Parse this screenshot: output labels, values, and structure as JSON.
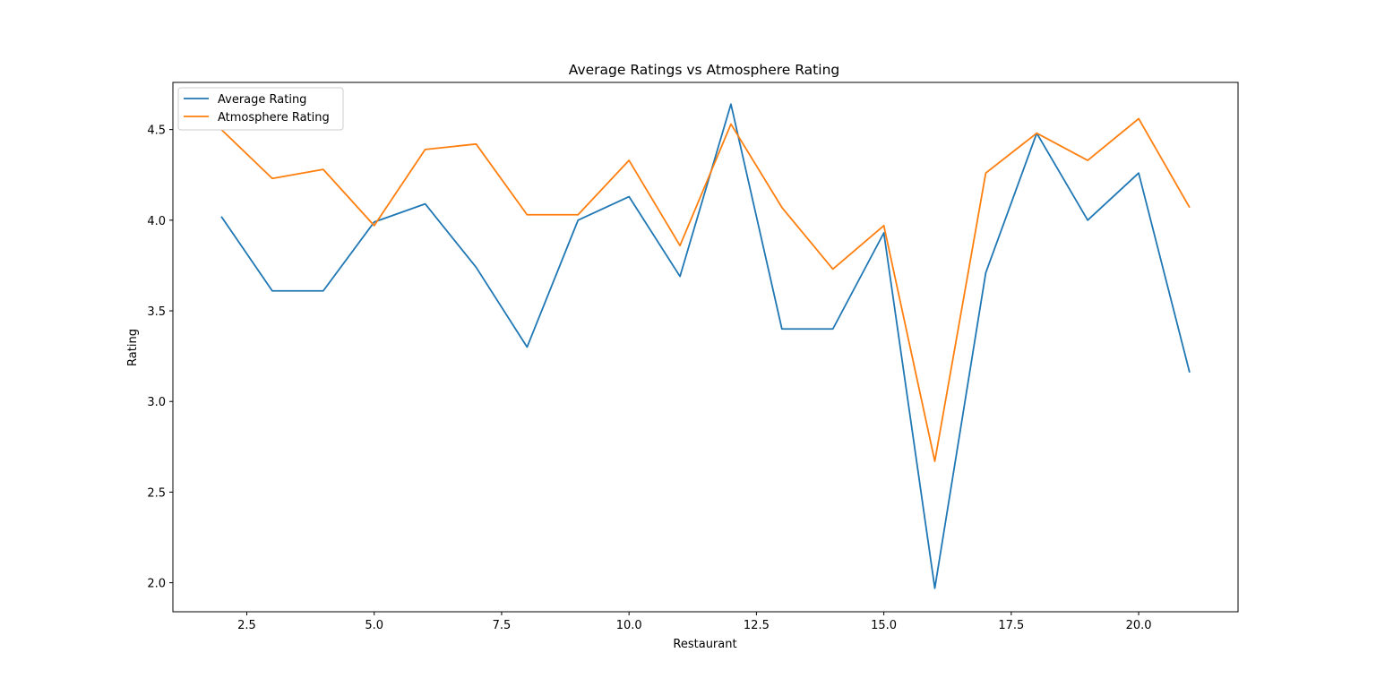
{
  "chart_data": {
    "type": "line",
    "title": "Average Ratings vs Atmosphere Rating",
    "xlabel": "Restaurant",
    "ylabel": "Rating",
    "xlim": [
      1.05,
      21.95
    ],
    "ylim": [
      1.84,
      4.76
    ],
    "x_ticks": [
      2.5,
      5.0,
      7.5,
      10.0,
      12.5,
      15.0,
      17.5,
      20.0
    ],
    "x_tick_labels": [
      "2.5",
      "5.0",
      "7.5",
      "10.0",
      "12.5",
      "15.0",
      "17.5",
      "20.0"
    ],
    "y_ticks": [
      2.0,
      2.5,
      3.0,
      3.5,
      4.0,
      4.5
    ],
    "y_tick_labels": [
      "2.0",
      "2.5",
      "3.0",
      "3.5",
      "4.0",
      "4.5"
    ],
    "grid": false,
    "legend": "top-left",
    "x": [
      2,
      3,
      4,
      5,
      6,
      7,
      8,
      9,
      10,
      11,
      12,
      13,
      14,
      15,
      16,
      17,
      18,
      19,
      20,
      21
    ],
    "series": [
      {
        "name": "Average Rating",
        "color": "#1f77b4",
        "values": [
          4.02,
          3.61,
          3.61,
          3.99,
          4.09,
          3.74,
          3.3,
          4.0,
          4.13,
          3.69,
          4.64,
          3.4,
          3.4,
          3.93,
          1.97,
          3.71,
          4.48,
          4.0,
          4.26,
          3.16
        ]
      },
      {
        "name": "Atmosphere Rating",
        "color": "#ff7f0e",
        "values": [
          4.5,
          4.23,
          4.28,
          3.97,
          4.39,
          4.42,
          4.03,
          4.03,
          4.33,
          3.86,
          4.53,
          4.07,
          3.73,
          3.97,
          2.67,
          4.26,
          4.48,
          4.33,
          4.56,
          4.07
        ]
      }
    ]
  }
}
